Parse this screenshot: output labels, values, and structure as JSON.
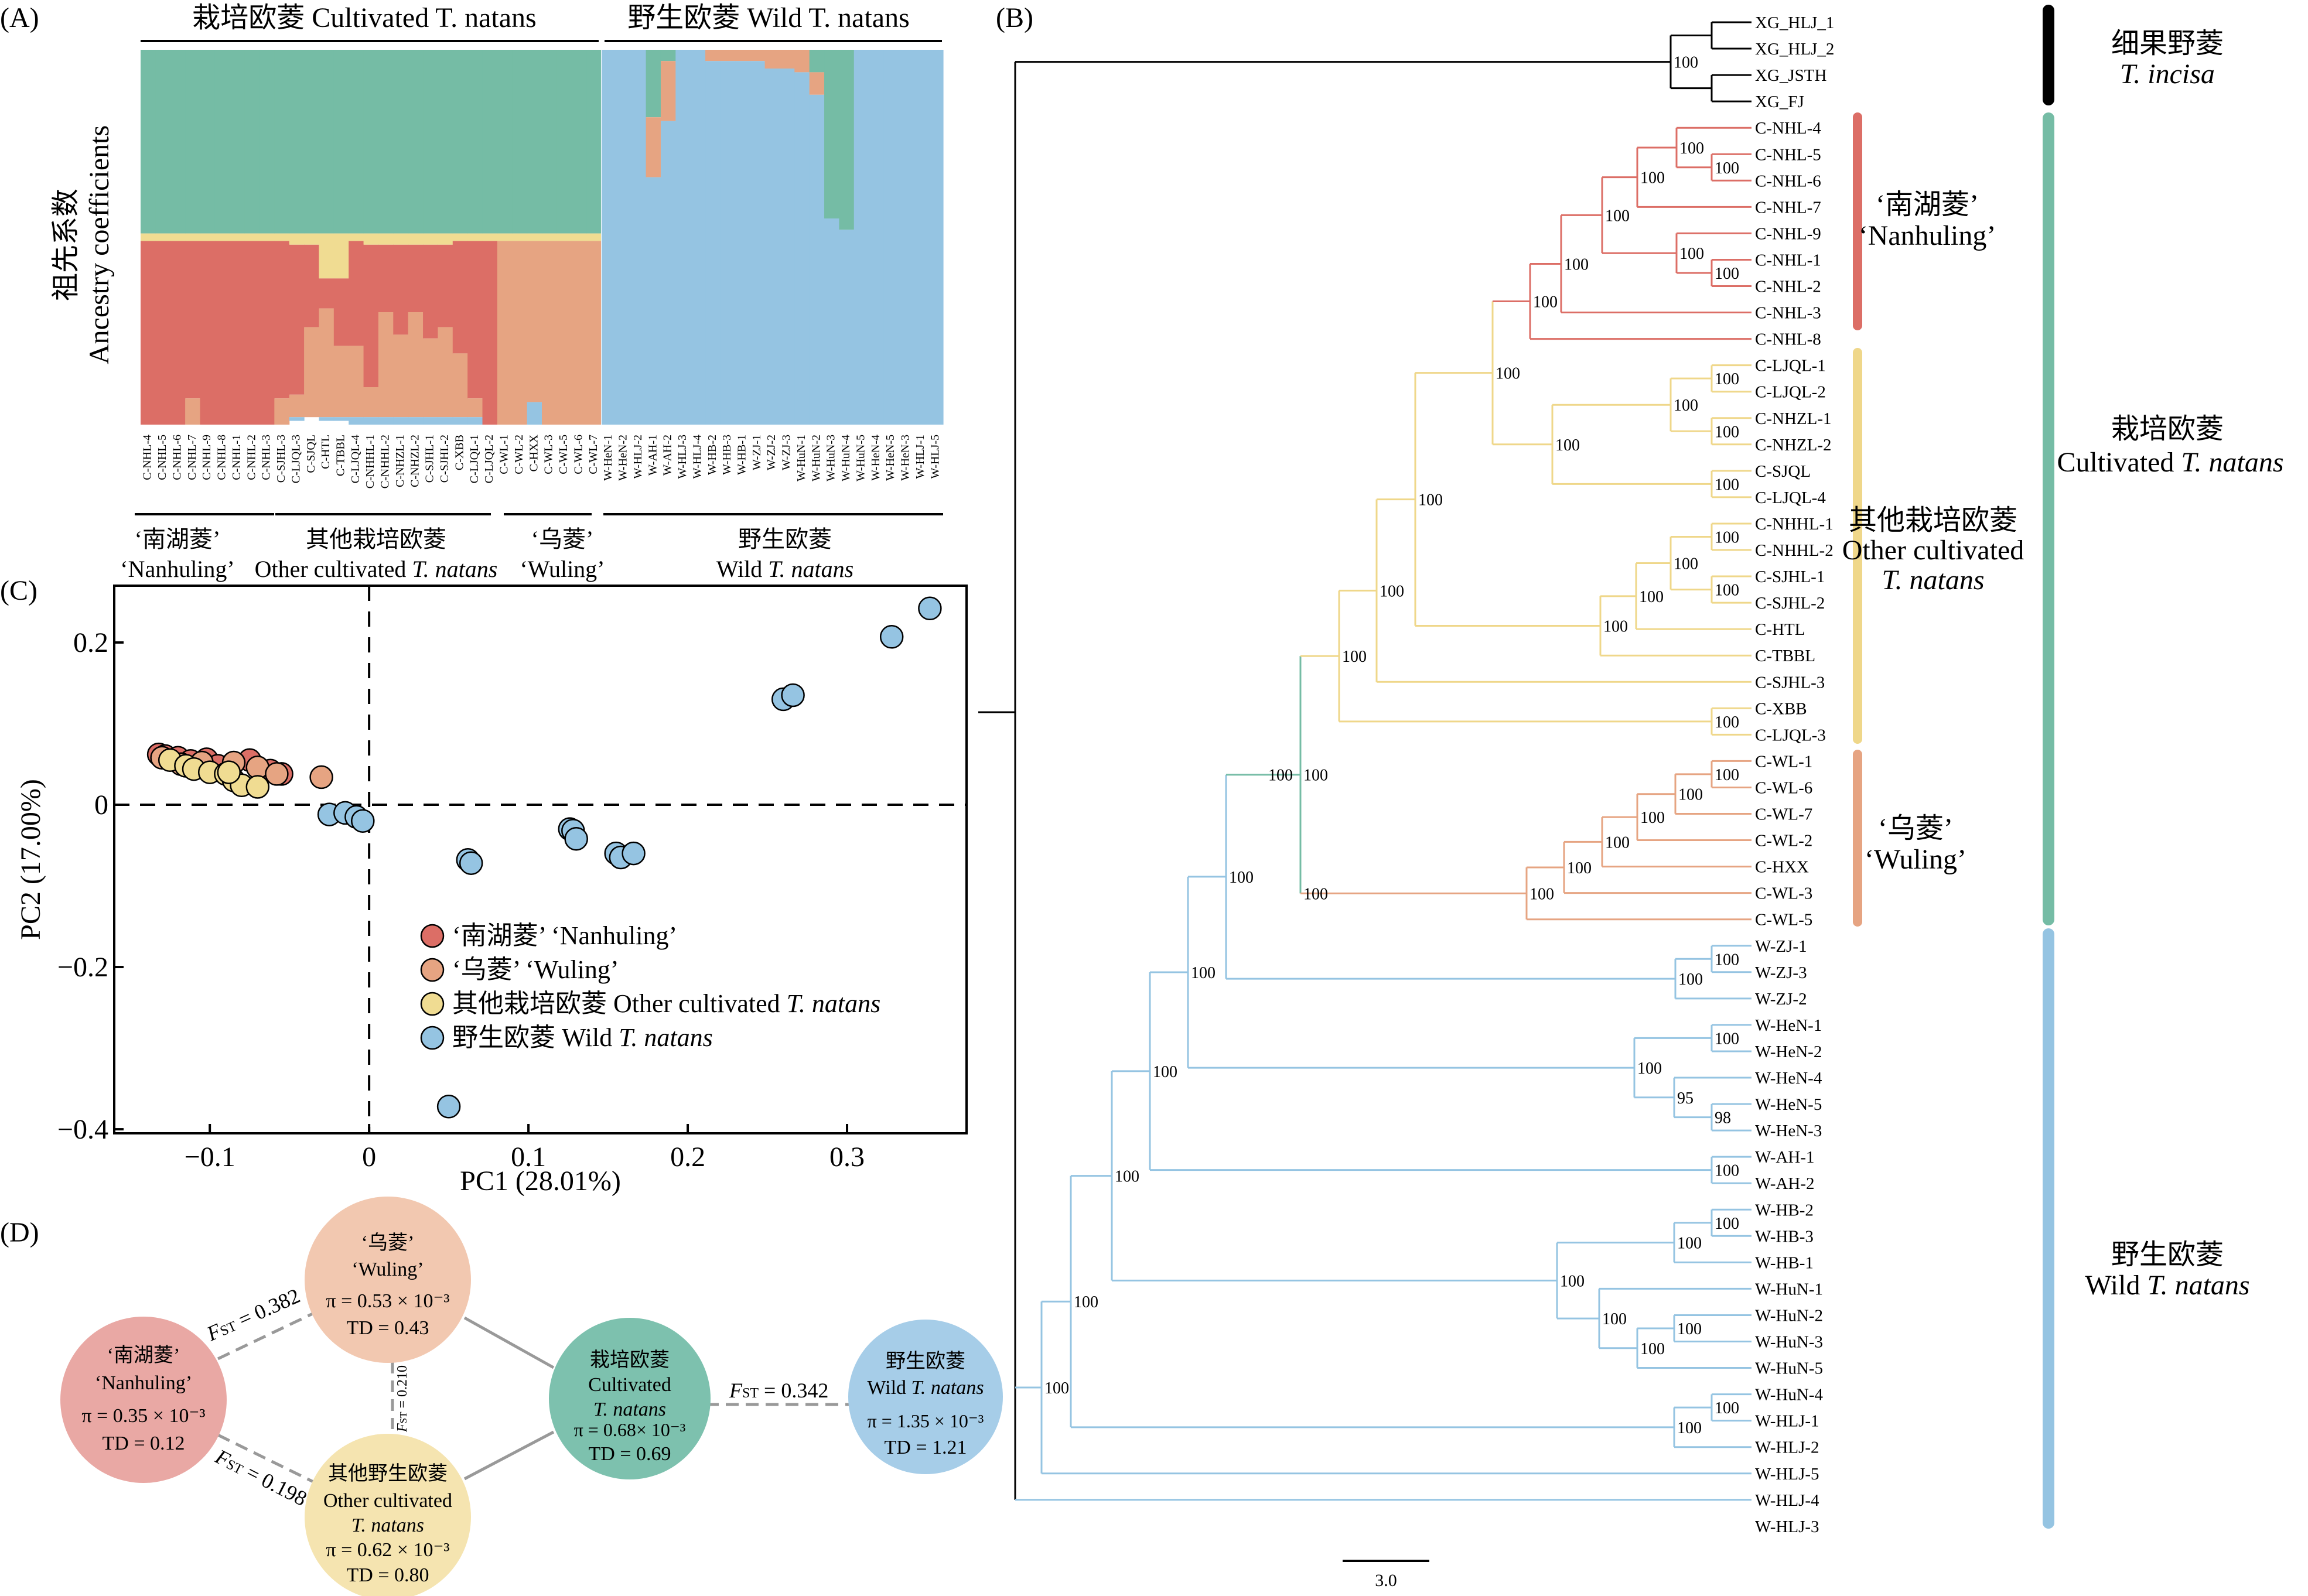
{
  "panels": {
    "A": {
      "label": "(A)",
      "group_headers": [
        "栽培欧菱 Cultivated T. natans",
        "野生欧菱 Wild T. natans"
      ],
      "ylabel_cn": "祖先系数",
      "ylabel_en": "Ancestry coefficients",
      "sample_labels": [
        "C-NHL-4",
        "C-NHL-5",
        "C-NHL-6",
        "C-NHL-7",
        "C-NHL-9",
        "C-NHL-8",
        "C-NHL-1",
        "C-NHL-2",
        "C-NHL-3",
        "C-SJHL-3",
        "C-LJQL-3",
        "C-SJQL",
        "C-HTL",
        "C-TBBL",
        "C-LJQL-4",
        "C-NHHL-1",
        "C-NHHL-2",
        "C-NHZL-1",
        "C-NHZL-2",
        "C-SJHL-1",
        "C-SJHL-2",
        "C-XBB",
        "C-LJQL-1",
        "C-LJQL-2",
        "C-WL-1",
        "C-WL-2",
        "C-HXX",
        "C-WL-3",
        "C-WL-5",
        "C-WL-6",
        "C-WL-7",
        "W-HeN-1",
        "W-HeN-2",
        "W-HLJ-2",
        "W-AH-1",
        "W-AH-2",
        "W-HLJ-3",
        "W-HLJ-4",
        "W-HB-2",
        "W-HB-3",
        "W-HB-1",
        "W-ZJ-1",
        "W-ZJ-2",
        "W-ZJ-3",
        "W-HuN-1",
        "W-HuN-2",
        "W-HuN-3",
        "W-HuN-4",
        "W-HuN-5",
        "W-HeN-4",
        "W-HeN-5",
        "W-HeN-3",
        "W-HLJ-1",
        "W-HLJ-5"
      ],
      "groups_bottom": [
        {
          "cn": "‘南湖菱’",
          "en": "‘Nanhuling’"
        },
        {
          "cn": "其他栽培欧菱",
          "en": "Other cultivated T. natans"
        },
        {
          "cn": "‘乌菱’",
          "en": "‘Wuling’"
        },
        {
          "cn": "野生欧菱",
          "en": "Wild T. natans"
        }
      ],
      "colors": {
        "green": "#75bca5",
        "yellow": "#f0dc92",
        "red": "#dc6e66",
        "orange": "#e6a482",
        "blue": "#95c4e2"
      }
    },
    "B": {
      "label": "(B)",
      "scale_label": "3.0",
      "tips": [
        {
          "name": "XG_HLJ_1",
          "clade": "incisa"
        },
        {
          "name": "XG_HLJ_2",
          "clade": "incisa"
        },
        {
          "name": "XG_JSTH",
          "clade": "incisa"
        },
        {
          "name": "XG_FJ",
          "clade": "incisa"
        },
        {
          "name": "C-NHL-4",
          "clade": "nhl"
        },
        {
          "name": "C-NHL-5",
          "clade": "nhl"
        },
        {
          "name": "C-NHL-6",
          "clade": "nhl"
        },
        {
          "name": "C-NHL-7",
          "clade": "nhl"
        },
        {
          "name": "C-NHL-9",
          "clade": "nhl"
        },
        {
          "name": "C-NHL-1",
          "clade": "nhl"
        },
        {
          "name": "C-NHL-2",
          "clade": "nhl"
        },
        {
          "name": "C-NHL-3",
          "clade": "nhl"
        },
        {
          "name": "C-NHL-8",
          "clade": "nhl"
        },
        {
          "name": "C-LJQL-1",
          "clade": "other"
        },
        {
          "name": "C-LJQL-2",
          "clade": "other"
        },
        {
          "name": "C-NHZL-1",
          "clade": "other"
        },
        {
          "name": "C-NHZL-2",
          "clade": "other"
        },
        {
          "name": "C-SJQL",
          "clade": "other"
        },
        {
          "name": "C-LJQL-4",
          "clade": "other"
        },
        {
          "name": "C-NHHL-1",
          "clade": "other"
        },
        {
          "name": "C-NHHL-2",
          "clade": "other"
        },
        {
          "name": "C-SJHL-1",
          "clade": "other"
        },
        {
          "name": "C-SJHL-2",
          "clade": "other"
        },
        {
          "name": "C-HTL",
          "clade": "other"
        },
        {
          "name": "C-TBBL",
          "clade": "other"
        },
        {
          "name": "C-SJHL-3",
          "clade": "other"
        },
        {
          "name": "C-XBB",
          "clade": "other"
        },
        {
          "name": "C-LJQL-3",
          "clade": "other"
        },
        {
          "name": "C-WL-1",
          "clade": "wl"
        },
        {
          "name": "C-WL-6",
          "clade": "wl"
        },
        {
          "name": "C-WL-7",
          "clade": "wl"
        },
        {
          "name": "C-WL-2",
          "clade": "wl"
        },
        {
          "name": "C-HXX",
          "clade": "wl"
        },
        {
          "name": "C-WL-3",
          "clade": "wl"
        },
        {
          "name": "C-WL-5",
          "clade": "wl"
        },
        {
          "name": "W-ZJ-1",
          "clade": "wild"
        },
        {
          "name": "W-ZJ-3",
          "clade": "wild"
        },
        {
          "name": "W-ZJ-2",
          "clade": "wild"
        },
        {
          "name": "W-HeN-1",
          "clade": "wild"
        },
        {
          "name": "W-HeN-2",
          "clade": "wild"
        },
        {
          "name": "W-HeN-4",
          "clade": "wild"
        },
        {
          "name": "W-HeN-5",
          "clade": "wild"
        },
        {
          "name": "W-HeN-3",
          "clade": "wild"
        },
        {
          "name": "W-AH-1",
          "clade": "wild"
        },
        {
          "name": "W-AH-2",
          "clade": "wild"
        },
        {
          "name": "W-HB-2",
          "clade": "wild"
        },
        {
          "name": "W-HB-3",
          "clade": "wild"
        },
        {
          "name": "W-HB-1",
          "clade": "wild"
        },
        {
          "name": "W-HuN-1",
          "clade": "wild"
        },
        {
          "name": "W-HuN-2",
          "clade": "wild"
        },
        {
          "name": "W-HuN-3",
          "clade": "wild"
        },
        {
          "name": "W-HuN-5",
          "clade": "wild"
        },
        {
          "name": "W-HuN-4",
          "clade": "wild"
        },
        {
          "name": "W-HLJ-1",
          "clade": "wild"
        },
        {
          "name": "W-HLJ-2",
          "clade": "wild"
        },
        {
          "name": "W-HLJ-5",
          "clade": "wild"
        },
        {
          "name": "W-HLJ-4",
          "clade": "wild"
        },
        {
          "name": "W-HLJ-3",
          "clade": "wild"
        }
      ],
      "bootstrap_values": [
        "100",
        "95",
        "98"
      ],
      "inner_labels": [
        {
          "cn": "‘南湖菱’",
          "en": "‘Nanhuling’"
        },
        {
          "cn": "其他栽培欧菱",
          "en1": "Other cultivated",
          "en2": "T. natans"
        },
        {
          "cn": "‘乌菱’",
          "en": "‘Wuling’"
        }
      ],
      "outer_labels": [
        {
          "cn": "细果野菱",
          "en": "T. incisa"
        },
        {
          "cn": "栽培欧菱",
          "en": "Cultivated T. natans"
        },
        {
          "cn": "野生欧菱",
          "en": "Wild T. natans"
        }
      ],
      "colors": {
        "incisa": "#000000",
        "nhl": "#dc6e66",
        "other": "#efd78a",
        "wl": "#e6a482",
        "cult_stem": "#75bca5",
        "wild": "#95c4e2"
      }
    },
    "C": {
      "label": "(C)"
    },
    "D": {
      "label": "(D)",
      "nodes": [
        {
          "id": "wuling",
          "line1": "‘乌菱’",
          "line2": "‘Wuling’",
          "pi": "π = 0.53 × 10⁻³",
          "td": "TD = 0.43",
          "color": "#f2c8b0"
        },
        {
          "id": "nanhuling",
          "line1": "‘南湖菱’",
          "line2": "‘Nanhuling’",
          "pi": "π = 0.35 × 10⁻³",
          "td": "TD = 0.12",
          "color": "#e9a8a4"
        },
        {
          "id": "other",
          "line1": "其他野生欧菱",
          "line2": "Other cultivated",
          "line3": "T. natans",
          "pi": "π = 0.62 × 10⁻³",
          "td": "TD = 0.80",
          "color": "#f5e4b0"
        },
        {
          "id": "cultivated",
          "line1": "栽培欧菱",
          "line2": "Cultivated",
          "line3": "T. natans",
          "pi": "π = 0.68× 10⁻³",
          "td": "TD = 0.69",
          "color": "#7dc1ae"
        },
        {
          "id": "wild",
          "line1": "野生欧菱",
          "line2": "Wild T. natans",
          "pi": "π = 1.35 × 10⁻³",
          "td": "TD = 1.21",
          "color": "#a6cde8"
        }
      ],
      "fst": [
        "0.382",
        "0.210",
        "0.198",
        "0.342"
      ]
    }
  },
  "chart_data": [
    {
      "type": "bar",
      "title": "",
      "ylabel": "祖先系数 Ancestry coefficients",
      "note": "stacked ancestry proportions per individual (K=3), order: green/yellow/red-orange/blue",
      "categories": [
        "C-NHL-4",
        "C-NHL-5",
        "C-NHL-6",
        "C-NHL-7",
        "C-NHL-9",
        "C-NHL-8",
        "C-NHL-1",
        "C-NHL-2",
        "C-NHL-3",
        "C-SJHL-3",
        "C-LJQL-3",
        "C-SJQL",
        "C-HTL",
        "C-TBBL",
        "C-LJQL-4",
        "C-NHHL-1",
        "C-NHHL-2",
        "C-NHZL-1",
        "C-NHZL-2",
        "C-SJHL-1",
        "C-SJHL-2",
        "C-XBB",
        "C-LJQL-1",
        "C-LJQL-2",
        "C-WL-1",
        "C-WL-2",
        "C-HXX",
        "C-WL-3",
        "C-WL-5",
        "C-WL-6",
        "C-WL-7",
        "W-HeN-1",
        "W-HeN-2",
        "W-HLJ-2",
        "W-AH-1",
        "W-AH-2",
        "W-HLJ-3",
        "W-HLJ-4",
        "W-HB-2",
        "W-HB-3",
        "W-HB-1",
        "W-ZJ-1",
        "W-ZJ-2",
        "W-ZJ-3",
        "W-HuN-1",
        "W-HuN-2",
        "W-HuN-3",
        "W-HuN-4",
        "W-HuN-5",
        "W-HeN-4",
        "W-HeN-5",
        "W-HeN-3",
        "W-HLJ-1",
        "W-HLJ-5"
      ],
      "series": [
        {
          "name": "green",
          "values": [
            0.49,
            0.49,
            0.49,
            0.49,
            0.49,
            0.49,
            0.49,
            0.49,
            0.49,
            0.49,
            0.49,
            0.49,
            0.49,
            0.49,
            0.49,
            0.49,
            0.49,
            0.49,
            0.49,
            0.49,
            0.49,
            0.49,
            0.49,
            0.49,
            0.49,
            0.49,
            0.49,
            0.49,
            0.49,
            0.49,
            0.49,
            0,
            0,
            0,
            0.18,
            0.03,
            0,
            0,
            0,
            0,
            0,
            0,
            0,
            0,
            0,
            0.06,
            0.45,
            0.48,
            0,
            0,
            0,
            0,
            0,
            0
          ]
        },
        {
          "name": "yellow",
          "values": [
            0.02,
            0.02,
            0.02,
            0.02,
            0.02,
            0.02,
            0.02,
            0.02,
            0.02,
            0.02,
            0.03,
            0.03,
            0.12,
            0.12,
            0.02,
            0.03,
            0.03,
            0.03,
            0.03,
            0.03,
            0.03,
            0.02,
            0.02,
            0.02,
            0.02,
            0.02,
            0.02,
            0.02,
            0.02,
            0.02,
            0.02,
            0,
            0,
            0,
            0,
            0,
            0,
            0,
            0,
            0,
            0,
            0,
            0,
            0,
            0,
            0,
            0,
            0,
            0,
            0,
            0,
            0,
            0,
            0
          ]
        },
        {
          "name": "red",
          "values": [
            0.49,
            0.49,
            0.49,
            0.42,
            0.49,
            0.49,
            0.49,
            0.49,
            0.49,
            0.42,
            0.4,
            0.22,
            0.08,
            0.18,
            0.28,
            0.38,
            0.18,
            0.24,
            0.18,
            0.25,
            0.22,
            0.3,
            0.42,
            0.49,
            0,
            0,
            0,
            0,
            0,
            0,
            0,
            0,
            0,
            0,
            0,
            0,
            0,
            0,
            0,
            0,
            0,
            0,
            0,
            0,
            0,
            0,
            0,
            0,
            0,
            0,
            0,
            0,
            0,
            0
          ]
        },
        {
          "name": "orange",
          "values": [
            0,
            0,
            0,
            0.07,
            0,
            0,
            0,
            0,
            0,
            0.07,
            0.06,
            0.24,
            0.29,
            0.19,
            0.19,
            0.08,
            0.28,
            0.22,
            0.28,
            0.21,
            0.24,
            0.17,
            0.05,
            0,
            0.49,
            0.49,
            0.43,
            0.49,
            0.49,
            0.49,
            0.49,
            0,
            0,
            0,
            0.16,
            0.16,
            0,
            0,
            0.03,
            0.03,
            0.03,
            0.03,
            0.05,
            0.05,
            0.06,
            0.06,
            0,
            0,
            0,
            0,
            0,
            0,
            0,
            0
          ]
        },
        {
          "name": "blue",
          "values": [
            0,
            0,
            0,
            0,
            0,
            0,
            0,
            0,
            0,
            0,
            0.01,
            0,
            0.01,
            0.01,
            0.02,
            0.02,
            0.02,
            0.02,
            0.02,
            0.02,
            0.02,
            0.02,
            0.02,
            0,
            0,
            0,
            0.06,
            0,
            0,
            0,
            0,
            1,
            1,
            1,
            0.66,
            0.81,
            1,
            1,
            0.97,
            0.97,
            0.97,
            0.97,
            0.95,
            0.95,
            0.94,
            0.88,
            0.55,
            0.52,
            1,
            1,
            1,
            1,
            1,
            1
          ]
        }
      ]
    },
    {
      "type": "scatter",
      "title": "",
      "xlabel": "PC1 (28.01%)",
      "ylabel": "PC2 (17.00%)",
      "xlim": [
        -0.16,
        0.375
      ],
      "ylim": [
        -0.405,
        0.27
      ],
      "xticks": [
        -0.1,
        0,
        0.1,
        0.2,
        0.3
      ],
      "xtick_labels": [
        "−0.1",
        "0",
        "0.1",
        "0.2",
        "0.3"
      ],
      "yticks": [
        -0.4,
        -0.2,
        0,
        0.2
      ],
      "ytick_labels": [
        "−0.4",
        "−0.2",
        "0",
        "0.2"
      ],
      "legend_position": "lower-center",
      "series": [
        {
          "name": "‘南湖菱’ ‘Nanhuling’",
          "color": "#dc6e66",
          "points": [
            [
              -0.132,
              0.062
            ],
            [
              -0.128,
              0.06
            ],
            [
              -0.12,
              0.058
            ],
            [
              -0.112,
              0.054
            ],
            [
              -0.102,
              0.056
            ],
            [
              -0.095,
              0.048
            ],
            [
              -0.075,
              0.055
            ],
            [
              -0.062,
              0.042
            ],
            [
              -0.055,
              0.038
            ]
          ]
        },
        {
          "name": "‘乌菱’ ‘Wuling’",
          "color": "#e6a482",
          "points": [
            [
              -0.13,
              0.058
            ],
            [
              -0.118,
              0.05
            ],
            [
              -0.105,
              0.052
            ],
            [
              -0.085,
              0.052
            ],
            [
              -0.07,
              0.046
            ],
            [
              -0.058,
              0.038
            ],
            [
              -0.03,
              0.034
            ]
          ]
        },
        {
          "name": "其他栽培欧菱 Other cultivated T. natans",
          "color": "#f0dc92",
          "points": [
            [
              -0.125,
              0.055
            ],
            [
              -0.115,
              0.048
            ],
            [
              -0.11,
              0.044
            ],
            [
              -0.1,
              0.04
            ],
            [
              -0.09,
              0.038
            ],
            [
              -0.085,
              0.03
            ],
            [
              -0.08,
              0.024
            ],
            [
              -0.07,
              0.022
            ],
            [
              -0.088,
              0.04
            ]
          ]
        },
        {
          "name": "野生欧菱 Wild T. natans",
          "color": "#95c4e2",
          "points": [
            [
              -0.025,
              -0.012
            ],
            [
              -0.015,
              -0.01
            ],
            [
              -0.008,
              -0.015
            ],
            [
              -0.004,
              -0.02
            ],
            [
              0.062,
              -0.068
            ],
            [
              0.064,
              -0.072
            ],
            [
              0.05,
              -0.372
            ],
            [
              0.126,
              -0.03
            ],
            [
              0.128,
              -0.032
            ],
            [
              0.13,
              -0.042
            ],
            [
              0.155,
              -0.06
            ],
            [
              0.158,
              -0.065
            ],
            [
              0.166,
              -0.06
            ],
            [
              0.26,
              0.13
            ],
            [
              0.266,
              0.135
            ],
            [
              0.328,
              0.207
            ],
            [
              0.352,
              0.242
            ]
          ]
        }
      ]
    }
  ]
}
